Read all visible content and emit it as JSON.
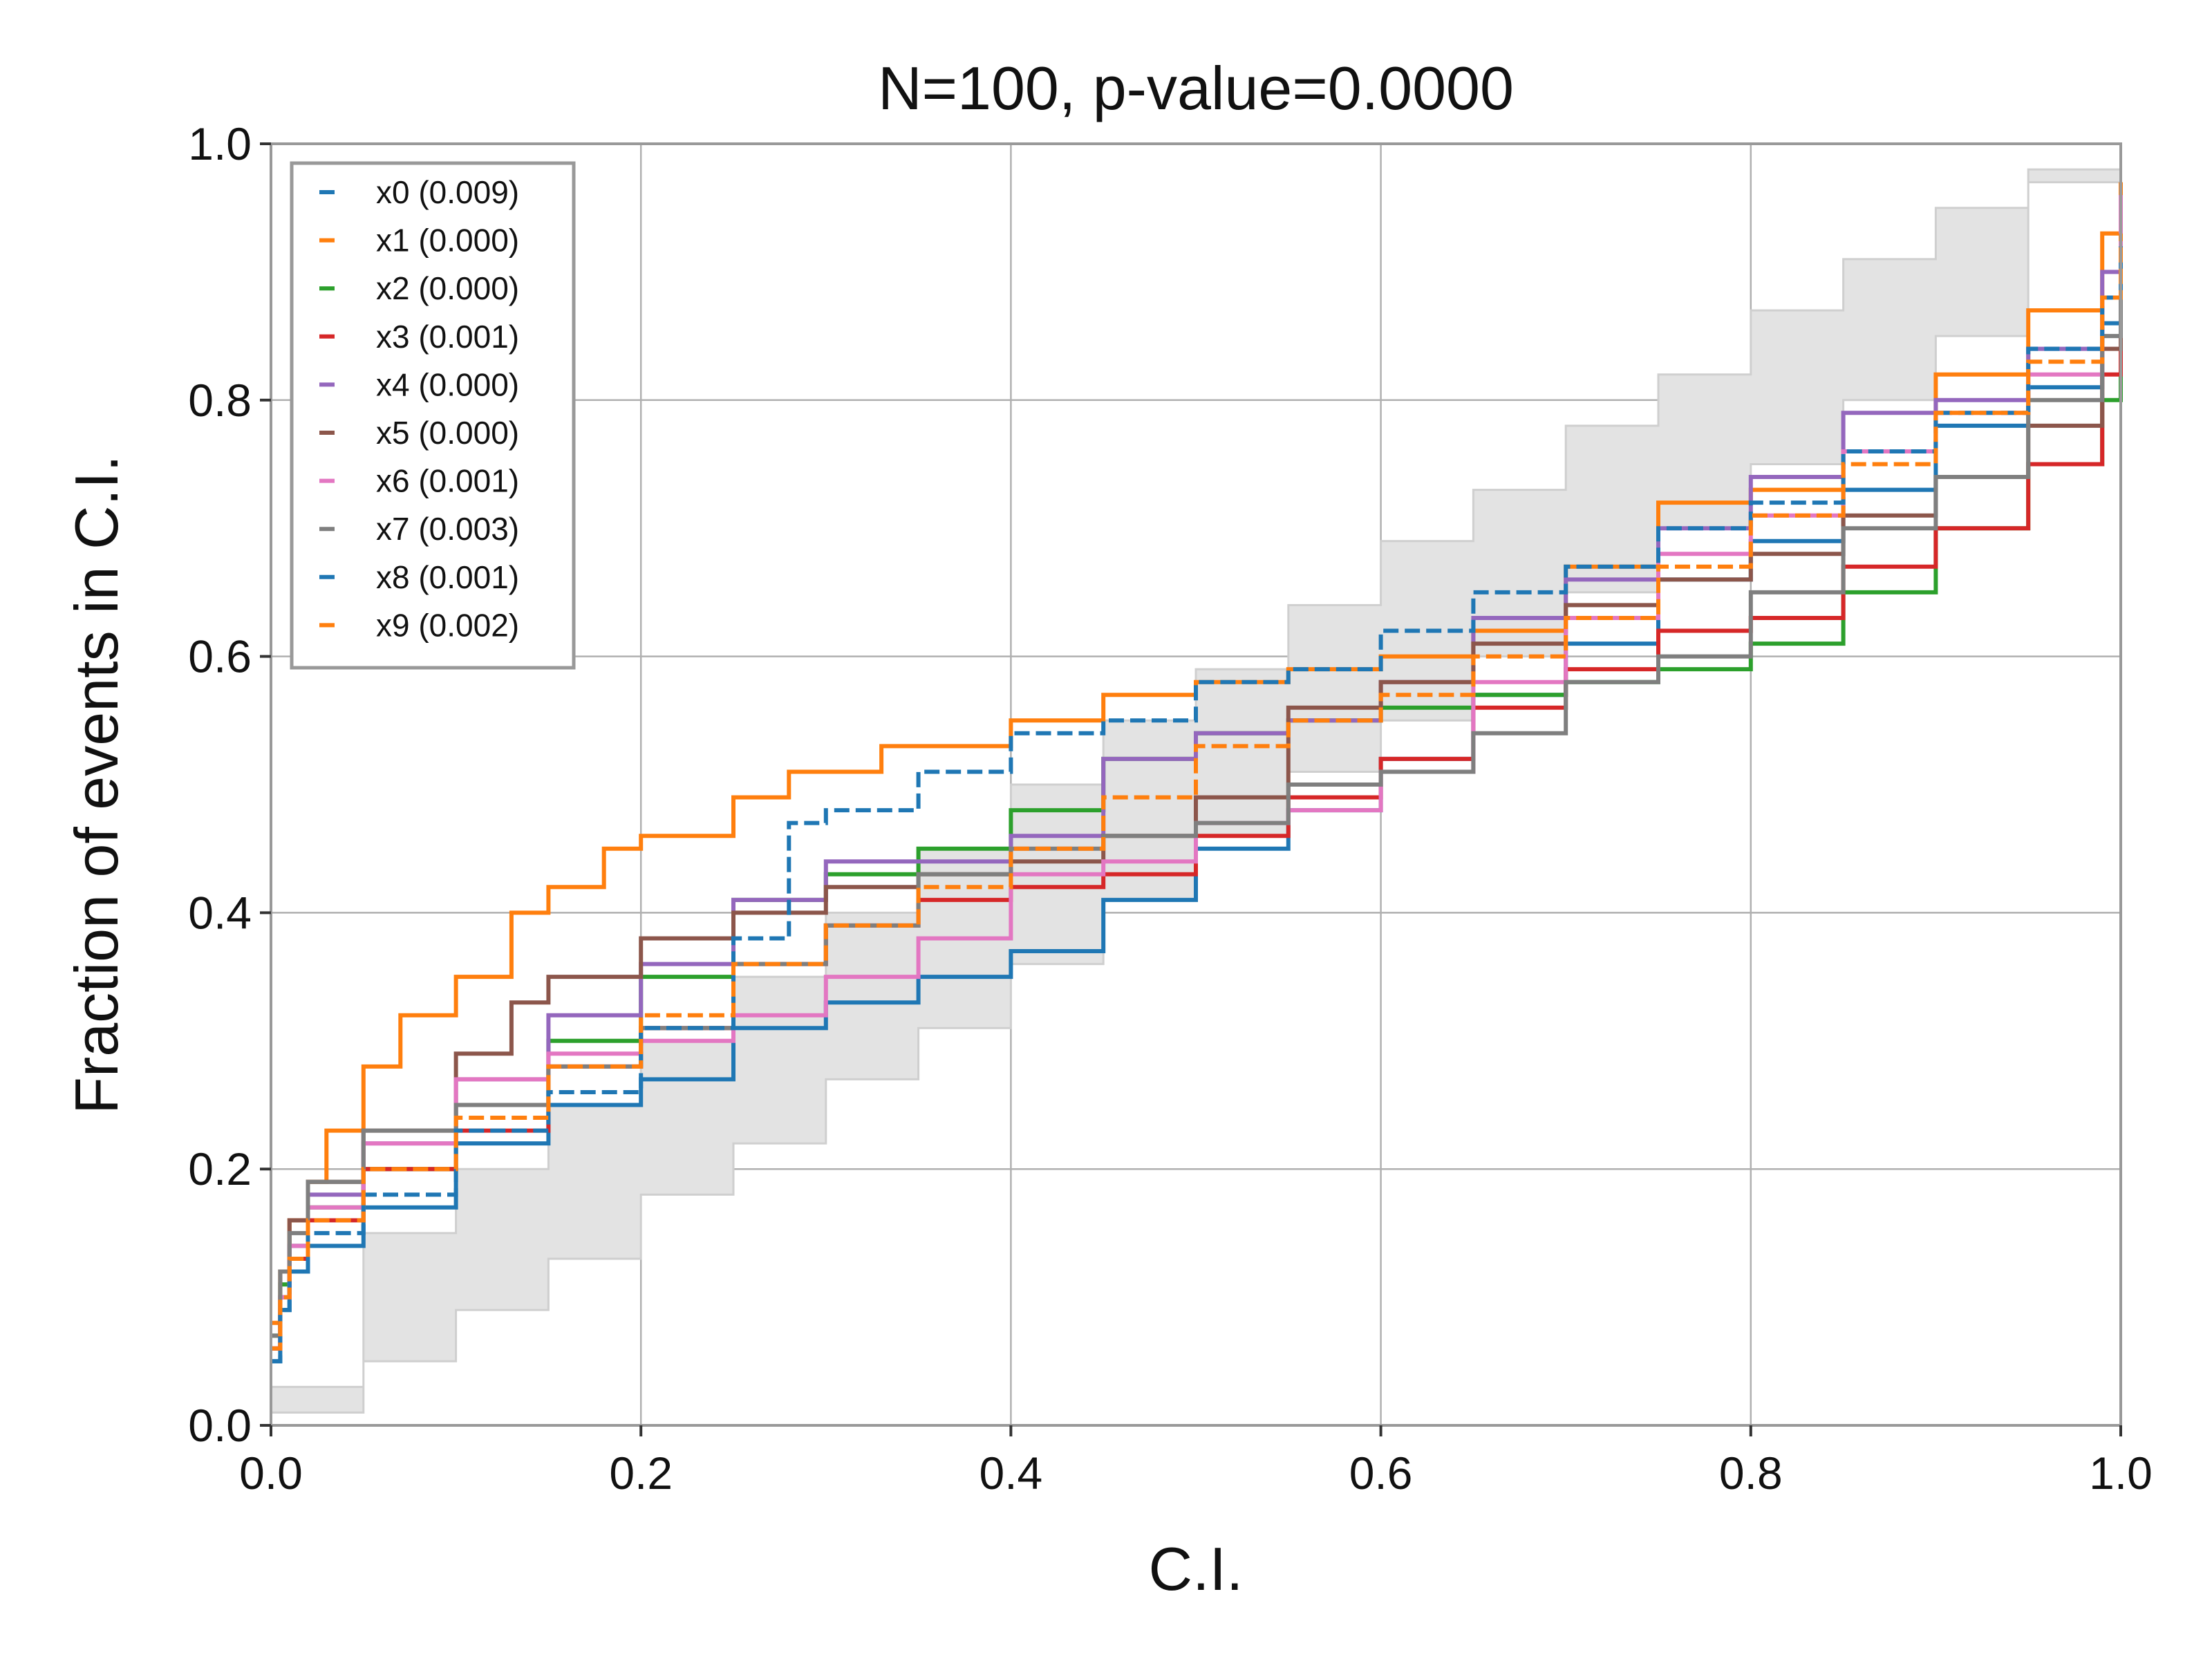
{
  "chart_data": {
    "type": "line",
    "title": "N=100, p-value=0.0000",
    "xlabel": "C.I.",
    "ylabel": "Fraction of events in C.I.",
    "xlim": [
      0,
      1
    ],
    "ylim": [
      0,
      1
    ],
    "xticks": [
      "0.0",
      "0.2",
      "0.4",
      "0.6",
      "0.8",
      "1.0"
    ],
    "yticks": [
      "0.0",
      "0.2",
      "0.4",
      "0.6",
      "0.8",
      "1.0"
    ],
    "grid": true,
    "legend_position": "upper-left",
    "band": {
      "color": "#e3e3e3",
      "x": [
        0.0,
        0.05,
        0.1,
        0.15,
        0.2,
        0.25,
        0.3,
        0.35,
        0.4,
        0.45,
        0.5,
        0.55,
        0.6,
        0.65,
        0.7,
        0.75,
        0.8,
        0.85,
        0.9,
        0.95,
        1.0
      ],
      "lower": [
        0.0,
        0.01,
        0.05,
        0.09,
        0.13,
        0.18,
        0.22,
        0.27,
        0.31,
        0.36,
        0.41,
        0.46,
        0.51,
        0.55,
        0.6,
        0.65,
        0.7,
        0.75,
        0.8,
        0.85,
        0.97
      ],
      "upper": [
        0.03,
        0.15,
        0.2,
        0.25,
        0.3,
        0.35,
        0.4,
        0.45,
        0.5,
        0.55,
        0.59,
        0.64,
        0.69,
        0.73,
        0.78,
        0.82,
        0.87,
        0.91,
        0.95,
        0.98,
        1.0
      ]
    },
    "series": [
      {
        "name": "x0 (0.009)",
        "color": "#1f77b4",
        "dash": false,
        "x": [
          0,
          0.005,
          0.01,
          0.02,
          0.05,
          0.1,
          0.15,
          0.2,
          0.25,
          0.3,
          0.35,
          0.4,
          0.45,
          0.5,
          0.55,
          0.6,
          0.65,
          0.7,
          0.75,
          0.8,
          0.85,
          0.9,
          0.95,
          0.99,
          1.0
        ],
        "y": [
          0.05,
          0.09,
          0.12,
          0.14,
          0.17,
          0.22,
          0.25,
          0.27,
          0.31,
          0.33,
          0.35,
          0.37,
          0.41,
          0.45,
          0.48,
          0.52,
          0.57,
          0.61,
          0.66,
          0.69,
          0.73,
          0.78,
          0.81,
          0.86,
          0.89
        ]
      },
      {
        "name": "x1 (0.000)",
        "color": "#ff7f0e",
        "dash": false,
        "x": [
          0,
          0.005,
          0.01,
          0.02,
          0.03,
          0.05,
          0.07,
          0.1,
          0.13,
          0.15,
          0.18,
          0.2,
          0.25,
          0.28,
          0.3,
          0.33,
          0.4,
          0.45,
          0.5,
          0.55,
          0.6,
          0.65,
          0.7,
          0.75,
          0.8,
          0.85,
          0.9,
          0.95,
          0.99,
          1.0
        ],
        "y": [
          0.08,
          0.12,
          0.16,
          0.19,
          0.23,
          0.28,
          0.32,
          0.35,
          0.4,
          0.42,
          0.45,
          0.46,
          0.49,
          0.51,
          0.51,
          0.53,
          0.55,
          0.57,
          0.58,
          0.59,
          0.6,
          0.62,
          0.67,
          0.72,
          0.73,
          0.76,
          0.82,
          0.87,
          0.93,
          0.97
        ]
      },
      {
        "name": "x2 (0.000)",
        "color": "#2ca02c",
        "dash": false,
        "x": [
          0,
          0.005,
          0.01,
          0.02,
          0.05,
          0.1,
          0.15,
          0.2,
          0.25,
          0.3,
          0.35,
          0.4,
          0.45,
          0.5,
          0.55,
          0.6,
          0.65,
          0.7,
          0.75,
          0.8,
          0.85,
          0.9,
          0.95,
          0.99,
          1.0
        ],
        "y": [
          0.07,
          0.11,
          0.14,
          0.17,
          0.2,
          0.25,
          0.3,
          0.35,
          0.41,
          0.43,
          0.45,
          0.48,
          0.52,
          0.54,
          0.55,
          0.56,
          0.57,
          0.58,
          0.59,
          0.61,
          0.65,
          0.7,
          0.75,
          0.8,
          0.88
        ]
      },
      {
        "name": "x3 (0.001)",
        "color": "#d62728",
        "dash": false,
        "x": [
          0,
          0.005,
          0.01,
          0.02,
          0.05,
          0.1,
          0.15,
          0.2,
          0.25,
          0.3,
          0.35,
          0.4,
          0.45,
          0.5,
          0.55,
          0.6,
          0.65,
          0.7,
          0.75,
          0.8,
          0.85,
          0.9,
          0.95,
          0.99,
          1.0
        ],
        "y": [
          0.06,
          0.1,
          0.13,
          0.16,
          0.2,
          0.23,
          0.28,
          0.31,
          0.36,
          0.39,
          0.41,
          0.42,
          0.43,
          0.46,
          0.49,
          0.52,
          0.56,
          0.59,
          0.62,
          0.63,
          0.67,
          0.7,
          0.75,
          0.82,
          0.86
        ]
      },
      {
        "name": "x4 (0.000)",
        "color": "#9467bd",
        "dash": false,
        "x": [
          0,
          0.005,
          0.01,
          0.02,
          0.05,
          0.1,
          0.15,
          0.2,
          0.25,
          0.3,
          0.35,
          0.4,
          0.45,
          0.5,
          0.55,
          0.6,
          0.65,
          0.7,
          0.75,
          0.8,
          0.85,
          0.9,
          0.95,
          0.99,
          1.0
        ],
        "y": [
          0.06,
          0.1,
          0.14,
          0.18,
          0.22,
          0.27,
          0.32,
          0.36,
          0.41,
          0.44,
          0.44,
          0.46,
          0.52,
          0.54,
          0.55,
          0.58,
          0.63,
          0.66,
          0.7,
          0.74,
          0.79,
          0.8,
          0.84,
          0.9,
          0.96
        ]
      },
      {
        "name": "x5 (0.000)",
        "color": "#8c564b",
        "dash": false,
        "x": [
          0,
          0.005,
          0.01,
          0.02,
          0.05,
          0.1,
          0.13,
          0.15,
          0.2,
          0.25,
          0.3,
          0.35,
          0.4,
          0.45,
          0.5,
          0.55,
          0.6,
          0.65,
          0.7,
          0.75,
          0.8,
          0.85,
          0.9,
          0.95,
          0.99,
          1.0
        ],
        "y": [
          0.06,
          0.12,
          0.16,
          0.19,
          0.23,
          0.29,
          0.33,
          0.35,
          0.38,
          0.4,
          0.42,
          0.43,
          0.44,
          0.46,
          0.49,
          0.56,
          0.58,
          0.61,
          0.64,
          0.66,
          0.68,
          0.71,
          0.74,
          0.78,
          0.84,
          0.89
        ]
      },
      {
        "name": "x6 (0.001)",
        "color": "#e377c2",
        "dash": false,
        "x": [
          0,
          0.005,
          0.01,
          0.02,
          0.05,
          0.1,
          0.15,
          0.2,
          0.25,
          0.3,
          0.35,
          0.4,
          0.45,
          0.5,
          0.55,
          0.6,
          0.65,
          0.7,
          0.75,
          0.8,
          0.85,
          0.9,
          0.95,
          0.99,
          1.0
        ],
        "y": [
          0.06,
          0.1,
          0.14,
          0.17,
          0.22,
          0.27,
          0.29,
          0.3,
          0.32,
          0.35,
          0.38,
          0.43,
          0.44,
          0.47,
          0.48,
          0.51,
          0.58,
          0.63,
          0.68,
          0.71,
          0.76,
          0.79,
          0.82,
          0.88,
          0.96
        ]
      },
      {
        "name": "x7 (0.003)",
        "color": "#7f7f7f",
        "dash": false,
        "x": [
          0,
          0.005,
          0.01,
          0.02,
          0.05,
          0.1,
          0.15,
          0.2,
          0.25,
          0.3,
          0.35,
          0.4,
          0.45,
          0.5,
          0.55,
          0.6,
          0.65,
          0.7,
          0.75,
          0.8,
          0.85,
          0.9,
          0.95,
          0.99,
          1.0
        ],
        "y": [
          0.07,
          0.12,
          0.15,
          0.19,
          0.23,
          0.25,
          0.28,
          0.31,
          0.36,
          0.39,
          0.43,
          0.45,
          0.46,
          0.47,
          0.5,
          0.51,
          0.54,
          0.58,
          0.6,
          0.65,
          0.7,
          0.74,
          0.8,
          0.85,
          0.91
        ]
      },
      {
        "name": "x8 (0.001)",
        "color": "#1f77b4",
        "dash": true,
        "x": [
          0,
          0.005,
          0.01,
          0.02,
          0.05,
          0.1,
          0.15,
          0.2,
          0.25,
          0.28,
          0.3,
          0.35,
          0.4,
          0.45,
          0.5,
          0.55,
          0.6,
          0.65,
          0.7,
          0.75,
          0.8,
          0.85,
          0.9,
          0.95,
          0.99,
          1.0
        ],
        "y": [
          0.05,
          0.09,
          0.12,
          0.15,
          0.18,
          0.23,
          0.26,
          0.31,
          0.38,
          0.47,
          0.48,
          0.51,
          0.54,
          0.55,
          0.58,
          0.59,
          0.62,
          0.65,
          0.67,
          0.7,
          0.72,
          0.76,
          0.79,
          0.84,
          0.88,
          0.92
        ]
      },
      {
        "name": "x9 (0.002)",
        "color": "#ff7f0e",
        "dash": true,
        "x": [
          0,
          0.005,
          0.01,
          0.02,
          0.05,
          0.1,
          0.15,
          0.2,
          0.25,
          0.3,
          0.35,
          0.4,
          0.45,
          0.5,
          0.55,
          0.6,
          0.65,
          0.7,
          0.75,
          0.8,
          0.85,
          0.9,
          0.95,
          0.99,
          1.0
        ],
        "y": [
          0.06,
          0.1,
          0.13,
          0.16,
          0.2,
          0.24,
          0.28,
          0.32,
          0.36,
          0.39,
          0.42,
          0.45,
          0.49,
          0.53,
          0.55,
          0.57,
          0.6,
          0.63,
          0.67,
          0.71,
          0.75,
          0.79,
          0.83,
          0.88,
          0.93
        ]
      }
    ]
  }
}
